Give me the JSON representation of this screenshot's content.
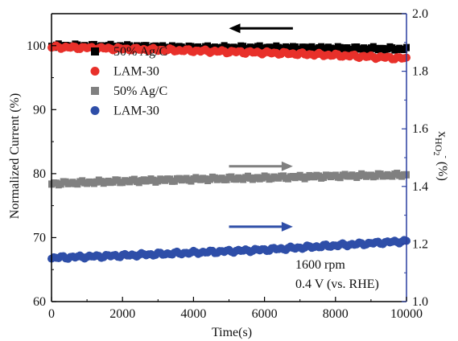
{
  "chart_data": {
    "type": "scatter",
    "xlabel": "Time(s)",
    "ylabel_left": "Normalized Current (%)",
    "ylabel_right": {
      "prefix": "x",
      "sub": "HO",
      "sub2": "2",
      "sup": "-",
      "suffix": " (%)"
    },
    "xlim": [
      0,
      10000
    ],
    "ylim_left": [
      60,
      105
    ],
    "ylim_right": [
      1.0,
      2.0
    ],
    "x_ticks": [
      0,
      2000,
      4000,
      6000,
      8000,
      10000
    ],
    "x_tick_labels": [
      "0",
      "2000",
      "4000",
      "6000",
      "8000",
      "10000"
    ],
    "y_left_ticks": [
      60,
      70,
      80,
      90,
      100
    ],
    "y_left_tick_labels": [
      "60",
      "70",
      "80",
      "90",
      "100"
    ],
    "y_right_ticks": [
      1.0,
      1.2,
      1.4,
      1.6,
      1.8,
      2.0
    ],
    "y_right_tick_labels": [
      "1.0",
      "1.2",
      "1.4",
      "1.6",
      "1.8",
      "2.0"
    ],
    "right_axis_color": "#2a3fa0",
    "series": [
      {
        "name": "50% Ag/C",
        "axis": "left",
        "marker": "square",
        "color": "#000000",
        "x": [
          0,
          2000,
          4000,
          6000,
          8000,
          10000
        ],
        "y": [
          100.0,
          99.9,
          99.7,
          99.7,
          99.6,
          99.5
        ]
      },
      {
        "name": "LAM-30",
        "axis": "left",
        "marker": "circle",
        "color": "#e8302a",
        "x": [
          0,
          2000,
          4000,
          6000,
          8000,
          10000
        ],
        "y": [
          99.8,
          99.5,
          99.2,
          98.9,
          98.5,
          98.0
        ]
      },
      {
        "name": "50% Ag/C",
        "axis": "right",
        "marker": "square",
        "color": "#808080",
        "x": [
          0,
          2000,
          4000,
          6000,
          8000,
          10000
        ],
        "y": [
          1.41,
          1.418,
          1.425,
          1.43,
          1.436,
          1.44
        ]
      },
      {
        "name": "LAM-30",
        "axis": "right",
        "marker": "circle",
        "color": "#2e4ea8",
        "x": [
          0,
          2000,
          4000,
          6000,
          8000,
          10000
        ],
        "y": [
          1.152,
          1.16,
          1.17,
          1.18,
          1.195,
          1.21
        ]
      }
    ],
    "annotations": [
      "1600 rpm",
      "0.4 V (vs. RHE)"
    ],
    "arrows": [
      {
        "color": "#000000",
        "direction": "left",
        "x": [
          5000,
          6800
        ],
        "y": 102.7,
        "axis": "left"
      },
      {
        "color": "#808080",
        "direction": "right",
        "x": [
          5000,
          6800
        ],
        "y": 1.47,
        "axis": "right"
      },
      {
        "color": "#2e4ea8",
        "direction": "right",
        "x": [
          5000,
          6800
        ],
        "y": 1.26,
        "axis": "right"
      }
    ],
    "legend_position": "upper-left",
    "grid": false
  }
}
